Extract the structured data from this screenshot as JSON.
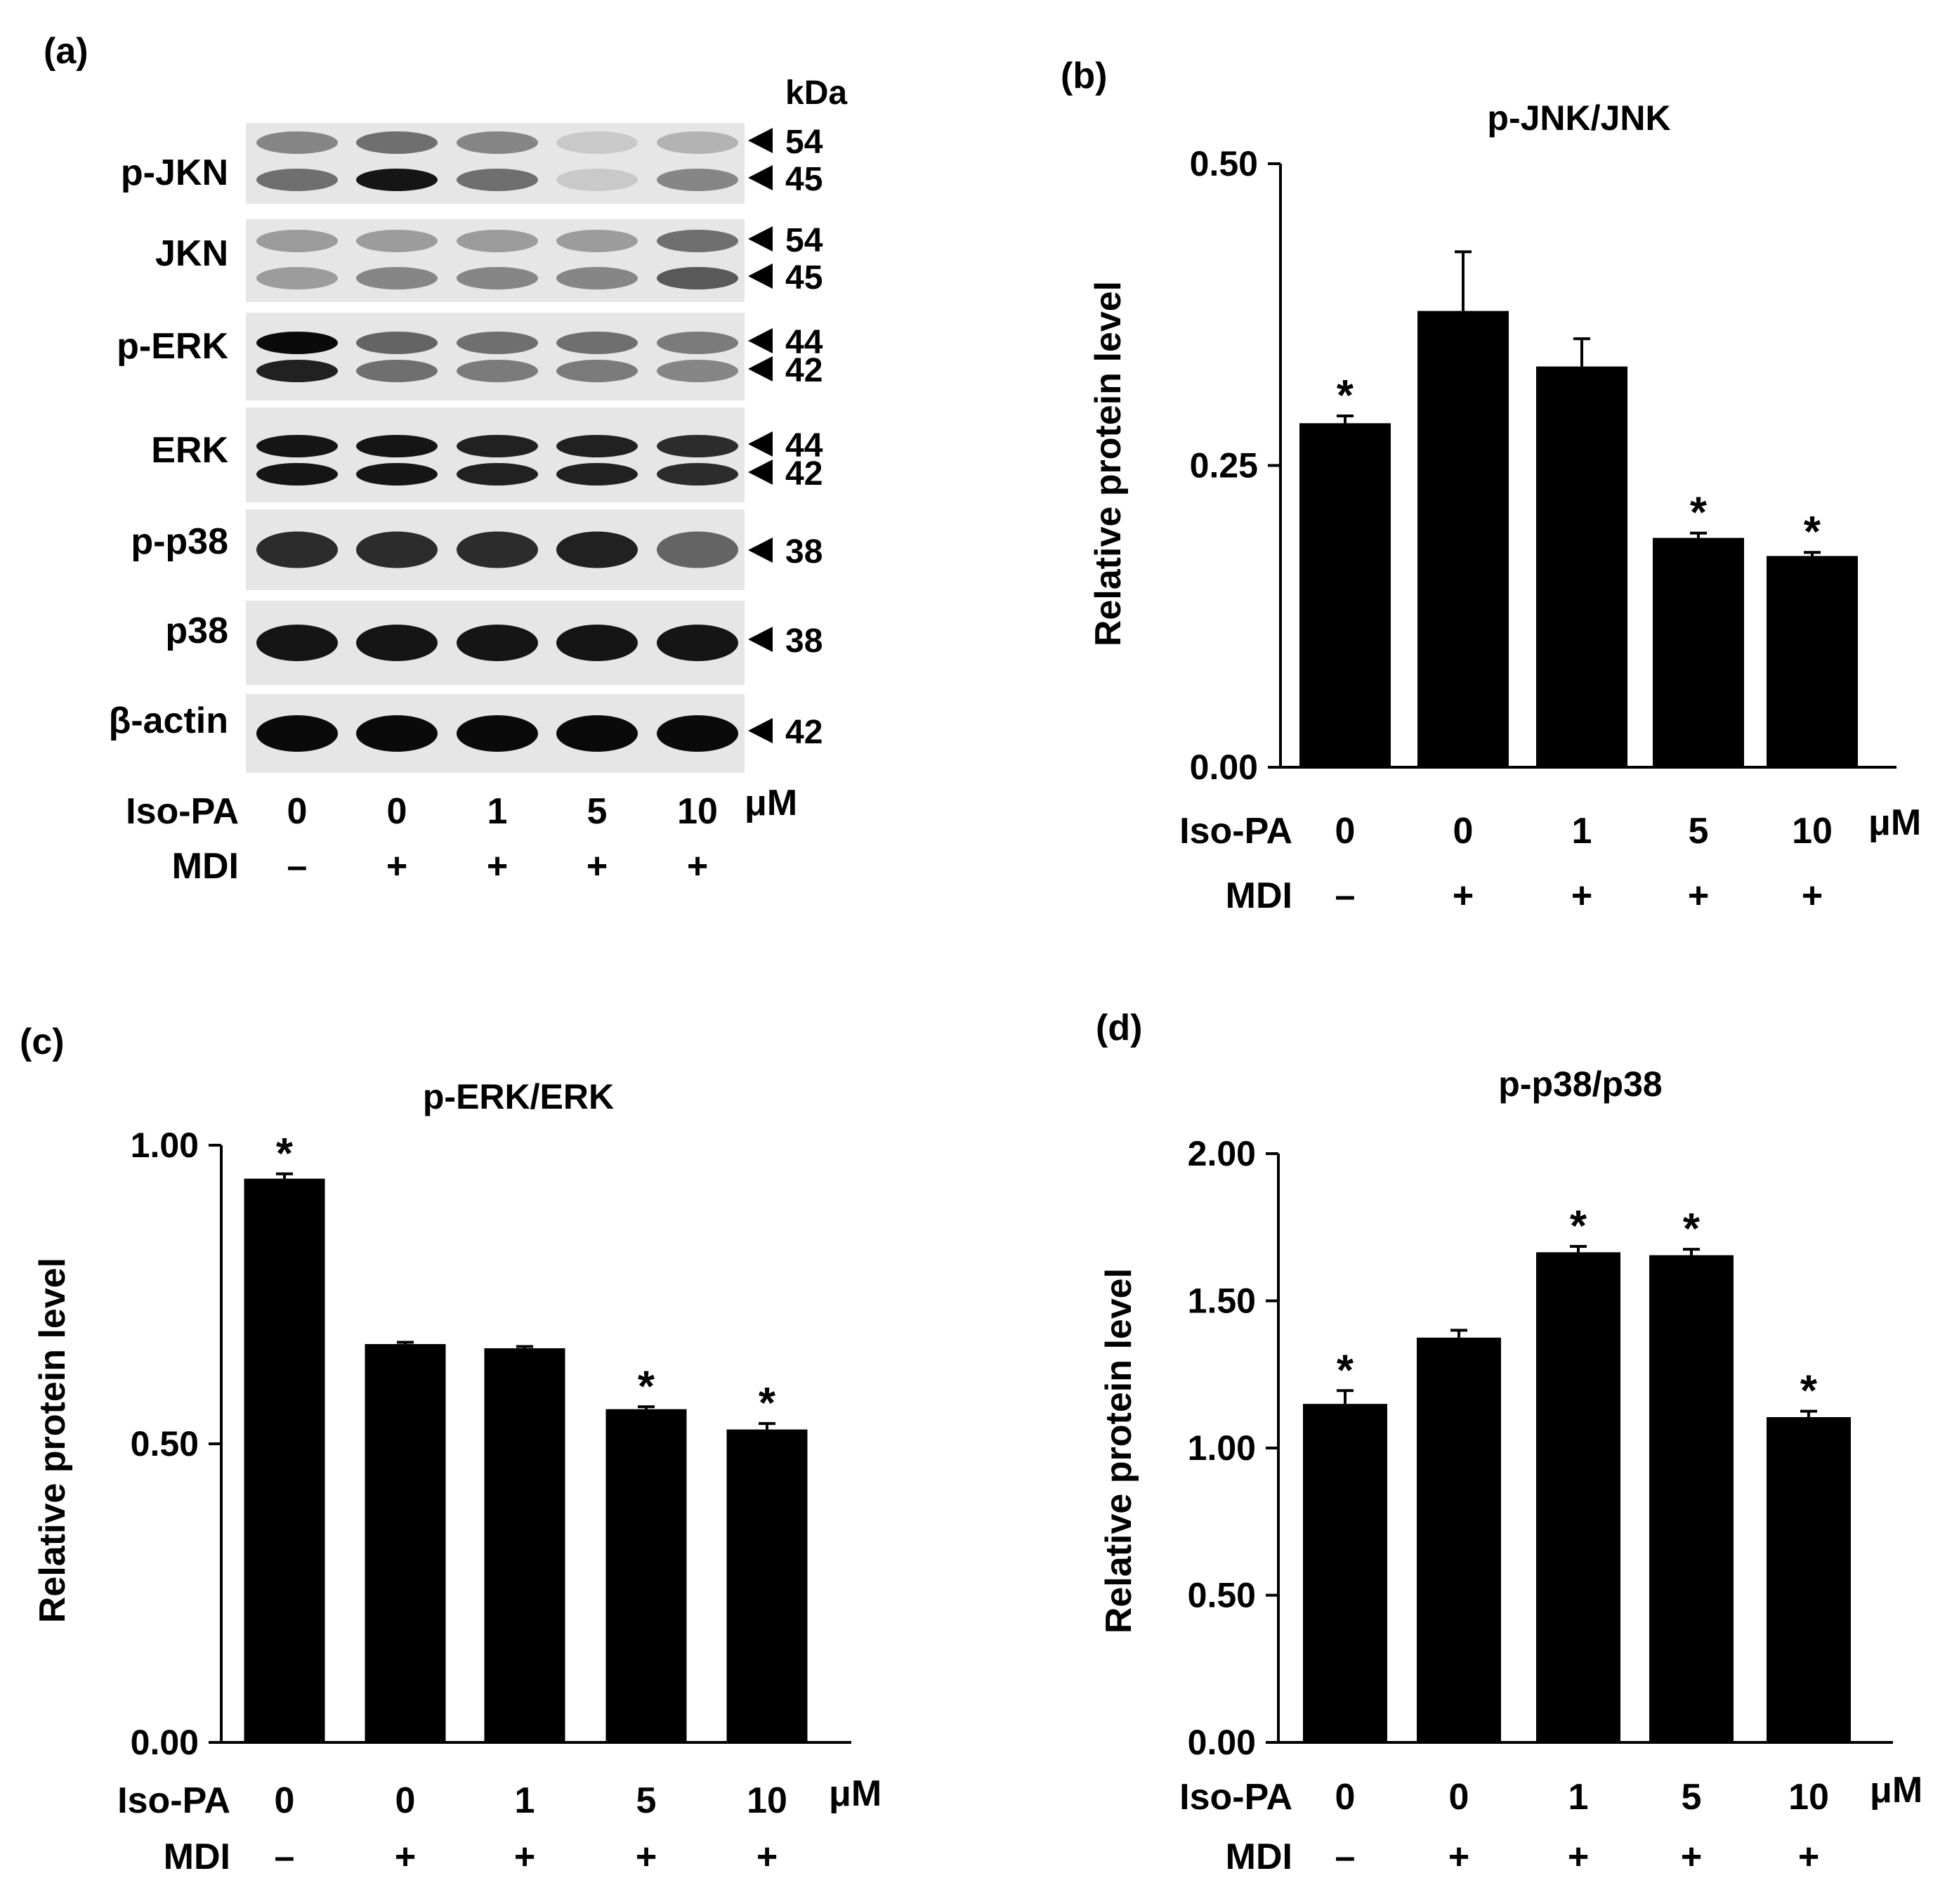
{
  "panel_a": {
    "label": "(a)",
    "unit_header": "kDa",
    "blots": [
      {
        "name": "p-JKN",
        "markers": [
          "54",
          "45"
        ]
      },
      {
        "name": "JKN",
        "markers": [
          "54",
          "45"
        ]
      },
      {
        "name": "p-ERK",
        "markers": [
          "44",
          "42"
        ]
      },
      {
        "name": "ERK",
        "markers": [
          "44",
          "42"
        ]
      },
      {
        "name": "p-p38",
        "markers": [
          "38"
        ]
      },
      {
        "name": "p38",
        "markers": [
          "38"
        ]
      },
      {
        "name": "β-actin",
        "markers": [
          "42"
        ]
      }
    ],
    "treatments": {
      "row1_label": "Iso-PA",
      "row1_values": [
        "0",
        "0",
        "1",
        "5",
        "10"
      ],
      "row1_unit": "μM",
      "row2_label": "MDI",
      "row2_values": [
        "–",
        "+",
        "+",
        "+",
        "+"
      ]
    }
  },
  "chart_data": [
    {
      "panel": "(b)",
      "type": "bar",
      "title": "p-JNK/JNK",
      "ylabel": "Relative protein level",
      "xlabel": "",
      "ylim": [
        0,
        0.5
      ],
      "yticks": [
        "0.00",
        "0.25",
        "0.50"
      ],
      "categories": [
        "0",
        "0",
        "1",
        "5",
        "10"
      ],
      "category_unit": "μM",
      "row1_label": "Iso-PA",
      "row2_label": "MDI",
      "row2_values": [
        "–",
        "+",
        "+",
        "+",
        "+"
      ],
      "values": [
        0.285,
        0.378,
        0.332,
        0.19,
        0.175
      ],
      "errors": [
        0.006,
        0.049,
        0.023,
        0.004,
        0.003
      ],
      "significance": [
        "*",
        "",
        "",
        "*",
        "*"
      ],
      "bar_color": "#000000"
    },
    {
      "panel": "(c)",
      "type": "bar",
      "title": "p-ERK/ERK",
      "ylabel": "Relative protein level",
      "xlabel": "",
      "ylim": [
        0,
        1.0
      ],
      "yticks": [
        "0.00",
        "0.50",
        "1.00"
      ],
      "categories": [
        "0",
        "0",
        "1",
        "5",
        "10"
      ],
      "category_unit": "μM",
      "row1_label": "Iso-PA",
      "row2_label": "MDI",
      "row2_values": [
        "–",
        "+",
        "+",
        "+",
        "+"
      ],
      "values": [
        0.944,
        0.667,
        0.66,
        0.558,
        0.524
      ],
      "errors": [
        0.008,
        0.003,
        0.003,
        0.004,
        0.01
      ],
      "significance": [
        "*",
        "",
        "",
        "*",
        "*"
      ],
      "bar_color": "#000000"
    },
    {
      "panel": "(d)",
      "type": "bar",
      "title": "p-p38/p38",
      "ylabel": "Relative protein level",
      "xlabel": "",
      "ylim": [
        0,
        2.0
      ],
      "yticks": [
        "0.00",
        "0.50",
        "1.00",
        "1.50",
        "2.00"
      ],
      "categories": [
        "0",
        "0",
        "1",
        "5",
        "10"
      ],
      "category_unit": "μM",
      "row1_label": "Iso-PA",
      "row2_label": "MDI",
      "row2_values": [
        "–",
        "+",
        "+",
        "+",
        "+"
      ],
      "values": [
        1.15,
        1.375,
        1.665,
        1.655,
        1.105
      ],
      "errors": [
        0.045,
        0.025,
        0.02,
        0.02,
        0.02
      ],
      "significance": [
        "*",
        "",
        "*",
        "*",
        "*"
      ],
      "bar_color": "#000000"
    }
  ]
}
